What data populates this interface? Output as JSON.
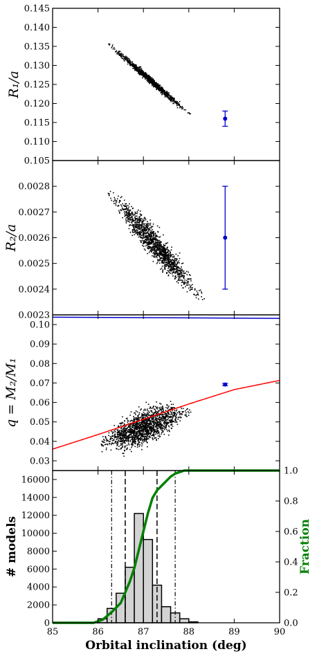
{
  "chart_data": [
    {
      "type": "scatter",
      "ylabel": "R_1/a",
      "ylim": [
        0.105,
        0.145
      ],
      "yticks": [
        "0.105",
        "0.110",
        "0.115",
        "0.120",
        "0.125",
        "0.130",
        "0.135",
        "0.140",
        "0.145"
      ],
      "band": {
        "from": [
          86.25,
          0.1355
        ],
        "to": [
          88.0,
          0.1173
        ],
        "width": 0.0005,
        "color": "#000000"
      },
      "point": {
        "x": 88.8,
        "y": 0.116,
        "err": 0.002,
        "color": "#0000cc"
      }
    },
    {
      "type": "scatter",
      "ylabel": "R_2/a",
      "ylim": [
        0.0023,
        0.0029
      ],
      "yticks": [
        "0.0023",
        "0.0024",
        "0.0025",
        "0.0026",
        "0.0027",
        "0.0028"
      ],
      "band": {
        "from": [
          86.25,
          0.00277
        ],
        "to": [
          88.3,
          0.00237
        ],
        "width": 4e-05,
        "color": "#000000"
      },
      "point": {
        "x": 88.8,
        "y": 0.0026,
        "err": 0.0002,
        "color": "#0000cc"
      }
    },
    {
      "type": "scatter",
      "ylabel": "q = M_2/M_1",
      "ylim": [
        0.025,
        0.105
      ],
      "yticks": [
        "0.03",
        "0.04",
        "0.05",
        "0.06",
        "0.07",
        "0.08",
        "0.09",
        "0.10"
      ],
      "cloud": {
        "from": [
          86.05,
          0.039
        ],
        "to": [
          88.0,
          0.056
        ],
        "width": 0.006,
        "color": "#000000"
      },
      "point": {
        "x": 88.8,
        "y": 0.0692,
        "err": 0.0006,
        "color": "#0000cc"
      },
      "blue_line": {
        "x": [
          85,
          90
        ],
        "y": [
          0.1038,
          0.1032
        ],
        "color": "#0000cc"
      },
      "red_curve": {
        "x": [
          85,
          86,
          87,
          88,
          89,
          90
        ],
        "y": [
          0.036,
          0.0435,
          0.0513,
          0.0592,
          0.0666,
          0.0713
        ],
        "color": "#ff0000"
      }
    },
    {
      "type": "bar",
      "ylabel": "# models",
      "y2label": "Fraction",
      "xlabel": "Orbital inclination (deg)",
      "xlim": [
        85,
        90
      ],
      "xticks": [
        "85",
        "86",
        "87",
        "88",
        "89",
        "90"
      ],
      "ylim": [
        0,
        17000
      ],
      "yticks": [
        "0",
        "2000",
        "4000",
        "6000",
        "8000",
        "10000",
        "12000",
        "14000",
        "16000"
      ],
      "y2lim": [
        0,
        1
      ],
      "y2ticks": [
        "0.0",
        "0.2",
        "0.4",
        "0.6",
        "0.8",
        "1.0"
      ],
      "bin_width": 0.2,
      "bins": [
        85.8,
        86.0,
        86.2,
        86.4,
        86.6,
        86.8,
        87.0,
        87.2,
        87.4,
        87.6,
        87.8,
        88.0
      ],
      "values": [
        50,
        450,
        1600,
        3300,
        6200,
        12200,
        9300,
        4200,
        1800,
        1100,
        450,
        100
      ],
      "bar_color": "#d3d3d3",
      "dashed_lines": [
        86.6,
        87.3
      ],
      "dashdot_lines": [
        86.3,
        87.7
      ],
      "cumulative": {
        "x": [
          85.0,
          85.9,
          86.1,
          86.3,
          86.5,
          86.7,
          86.8,
          86.9,
          87.0,
          87.1,
          87.2,
          87.3,
          87.4,
          87.5,
          87.6,
          87.7,
          87.8,
          87.9,
          88.0,
          88.1,
          90.0
        ],
        "y": [
          0.0,
          0.0,
          0.02,
          0.07,
          0.13,
          0.27,
          0.36,
          0.48,
          0.6,
          0.72,
          0.82,
          0.87,
          0.9,
          0.93,
          0.96,
          0.98,
          0.99,
          1.0,
          1.0,
          1.0,
          1.0
        ],
        "color": "#008000"
      }
    }
  ]
}
